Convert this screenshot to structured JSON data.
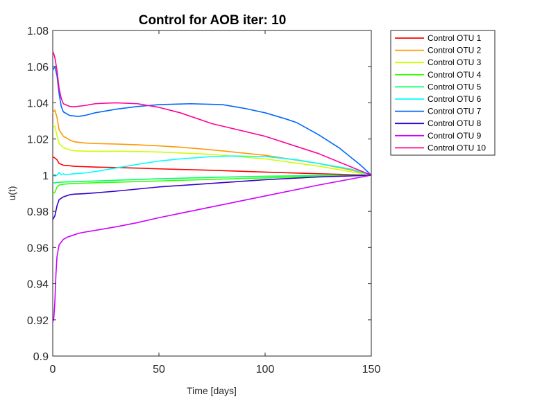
{
  "chart_data": {
    "type": "line",
    "title": "Control for AOB iter: 10",
    "xlabel": "Time [days]",
    "ylabel": "u(t)",
    "xlim": [
      0,
      150
    ],
    "ylim": [
      0.9,
      1.08
    ],
    "xticks": [
      0,
      50,
      100,
      150
    ],
    "xtick_labels": [
      "0",
      "50",
      "100",
      "150"
    ],
    "yticks": [
      0.9,
      0.92,
      0.94,
      0.96,
      0.98,
      1.0,
      1.02,
      1.04,
      1.06,
      1.08
    ],
    "ytick_labels": [
      "0.9",
      "0.92",
      "0.94",
      "0.96",
      "0.98",
      "1",
      "1.02",
      "1.04",
      "1.06",
      "1.08"
    ],
    "grid": false,
    "legend_position": "outside-right-top",
    "series": [
      {
        "name": "Control OTU 1",
        "color": "#ff0000",
        "x": [
          0,
          1,
          2,
          3,
          5,
          8,
          10,
          15,
          20,
          30,
          40,
          50,
          75,
          100,
          125,
          150
        ],
        "y": [
          1.0102,
          1.0095,
          1.0085,
          1.0065,
          1.0055,
          1.0052,
          1.0049,
          1.0047,
          1.0045,
          1.0042,
          1.0039,
          1.0035,
          1.0027,
          1.0017,
          1.0008,
          1.0
        ]
      },
      {
        "name": "Control OTU 2",
        "color": "#ff9900",
        "x": [
          0,
          1,
          2,
          3,
          5,
          8,
          10,
          15,
          20,
          30,
          40,
          50,
          60,
          75,
          100,
          125,
          140,
          150
        ],
        "y": [
          1.0345,
          1.036,
          1.032,
          1.025,
          1.0215,
          1.0195,
          1.0185,
          1.0178,
          1.0175,
          1.0172,
          1.0168,
          1.0162,
          1.0155,
          1.014,
          1.011,
          1.0065,
          1.003,
          1.0
        ]
      },
      {
        "name": "Control OTU 3",
        "color": "#ccff00",
        "x": [
          0,
          1,
          2,
          3,
          5,
          8,
          10,
          15,
          20,
          30,
          40,
          50,
          75,
          100,
          125,
          150
        ],
        "y": [
          1.0275,
          1.027,
          1.022,
          1.0175,
          1.0152,
          1.014,
          1.0135,
          1.0133,
          1.0132,
          1.0132,
          1.0131,
          1.0128,
          1.0115,
          1.009,
          1.005,
          1.0
        ]
      },
      {
        "name": "Control OTU 4",
        "color": "#33ff00",
        "x": [
          0,
          1,
          2,
          3,
          5,
          8,
          10,
          15,
          20,
          30,
          50,
          75,
          100,
          125,
          150
        ],
        "y": [
          0.9897,
          0.9905,
          0.9935,
          0.9945,
          0.995,
          0.9953,
          0.9954,
          0.9956,
          0.9958,
          0.9961,
          0.9968,
          0.9977,
          0.9985,
          0.9993,
          1.0
        ]
      },
      {
        "name": "Control OTU 5",
        "color": "#00ff66",
        "x": [
          0,
          1,
          2,
          5,
          10,
          20,
          30,
          50,
          75,
          100,
          125,
          150
        ],
        "y": [
          0.9955,
          0.9958,
          0.996,
          0.9962,
          0.9964,
          0.9968,
          0.9972,
          0.998,
          0.9988,
          0.9994,
          0.9998,
          1.0
        ]
      },
      {
        "name": "Control OTU 6",
        "color": "#00ffff",
        "x": [
          0,
          1,
          2,
          3,
          4,
          5,
          6,
          8,
          10,
          15,
          20,
          30,
          40,
          50,
          60,
          75,
          85,
          100,
          115,
          125,
          140,
          150
        ],
        "y": [
          1.0,
          0.9995,
          1.0,
          1.0015,
          1.0002,
          1.0008,
          1.0003,
          1.0005,
          1.0008,
          1.0012,
          1.002,
          1.004,
          1.006,
          1.0078,
          1.009,
          1.0103,
          1.0106,
          1.0103,
          1.0085,
          1.0065,
          1.0035,
          1.0
        ]
      },
      {
        "name": "Control OTU 7",
        "color": "#0066ff",
        "x": [
          0,
          1,
          2,
          3,
          4,
          5,
          8,
          12,
          15,
          20,
          30,
          40,
          50,
          65,
          80,
          90,
          100,
          110,
          115,
          125,
          135,
          145,
          150
        ],
        "y": [
          1.058,
          1.06,
          1.055,
          1.045,
          1.038,
          1.035,
          1.033,
          1.0325,
          1.033,
          1.0345,
          1.0365,
          1.038,
          1.039,
          1.0395,
          1.039,
          1.037,
          1.0345,
          1.031,
          1.029,
          1.0225,
          1.015,
          1.0055,
          1.0
        ]
      },
      {
        "name": "Control OTU 8",
        "color": "#3300cc",
        "x": [
          0,
          1,
          2,
          3,
          5,
          8,
          10,
          15,
          20,
          30,
          50,
          75,
          100,
          125,
          150
        ],
        "y": [
          0.9755,
          0.9775,
          0.983,
          0.9865,
          0.988,
          0.9892,
          0.9895,
          0.9898,
          0.9902,
          0.9912,
          0.9935,
          0.9955,
          0.9975,
          0.999,
          1.0
        ]
      },
      {
        "name": "Control OTU 9",
        "color": "#cc00ff",
        "x": [
          0,
          0.5,
          1,
          1.5,
          2,
          3,
          4,
          5,
          7,
          10,
          12,
          15,
          20,
          30,
          40,
          50,
          75,
          100,
          125,
          150
        ],
        "y": [
          0.9185,
          0.921,
          0.93,
          0.945,
          0.955,
          0.9615,
          0.963,
          0.9645,
          0.9658,
          0.967,
          0.9678,
          0.9685,
          0.9695,
          0.9715,
          0.9738,
          0.9765,
          0.9825,
          0.9885,
          0.9945,
          1.0
        ]
      },
      {
        "name": "Control OTU 10",
        "color": "#ff0099",
        "x": [
          0,
          0.5,
          1,
          2,
          3,
          4,
          5,
          8,
          10,
          15,
          20,
          25,
          30,
          40,
          50,
          60,
          75,
          100,
          125,
          150
        ],
        "y": [
          1.0685,
          1.067,
          1.065,
          1.058,
          1.048,
          1.0425,
          1.0395,
          1.038,
          1.0378,
          1.0385,
          1.0395,
          1.0398,
          1.04,
          1.0395,
          1.0375,
          1.0345,
          1.0285,
          1.0215,
          1.012,
          1.0
        ]
      }
    ]
  }
}
